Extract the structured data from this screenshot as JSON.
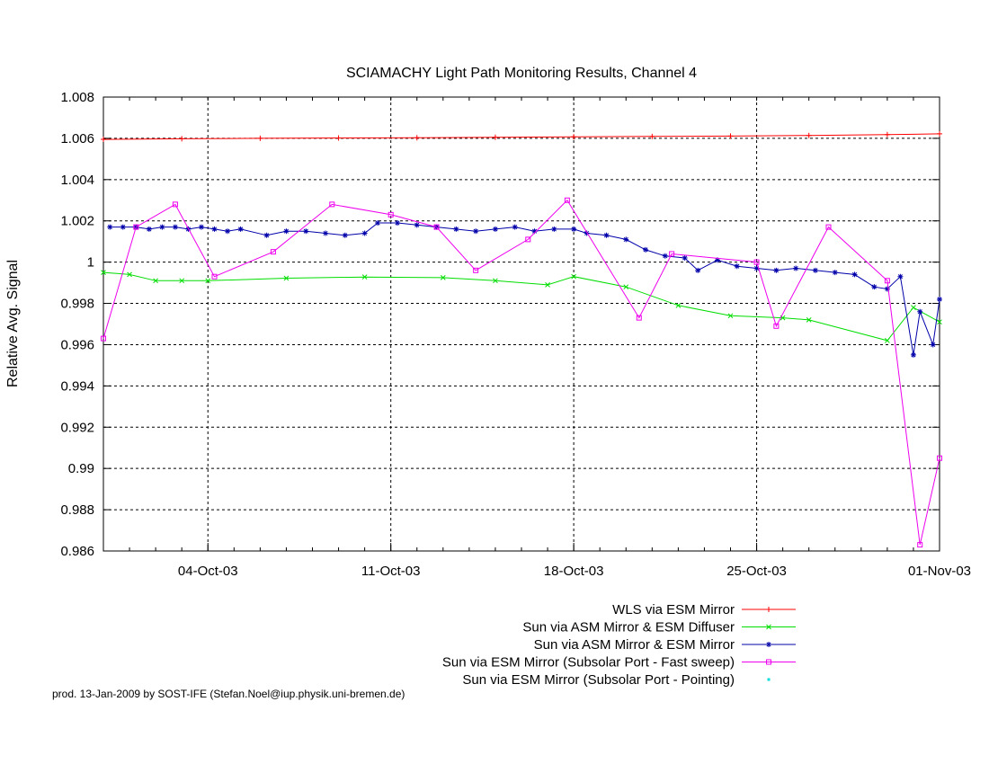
{
  "chart_data": {
    "type": "line",
    "title": "SCIAMACHY Light Path Monitoring Results, Channel 4",
    "xlabel": "",
    "ylabel": "Relative Avg. Signal",
    "x_range": [
      "2003-09-30",
      "2003-11-01"
    ],
    "ylim": [
      0.986,
      1.008
    ],
    "grid": true,
    "legend_position": "bottom",
    "x_ticks": [
      {
        "date": "2003-10-04",
        "label": "04-Oct-03"
      },
      {
        "date": "2003-10-11",
        "label": "11-Oct-03"
      },
      {
        "date": "2003-10-18",
        "label": "18-Oct-03"
      },
      {
        "date": "2003-10-25",
        "label": "25-Oct-03"
      },
      {
        "date": "2003-11-01",
        "label": "01-Nov-03"
      }
    ],
    "y_ticks": [
      {
        "value": 1.008,
        "label": "1.008"
      },
      {
        "value": 1.006,
        "label": "1.006"
      },
      {
        "value": 1.004,
        "label": "1.004"
      },
      {
        "value": 1.002,
        "label": "1.002"
      },
      {
        "value": 1.0,
        "label": "1"
      },
      {
        "value": 0.998,
        "label": "0.998"
      },
      {
        "value": 0.996,
        "label": "0.996"
      },
      {
        "value": 0.994,
        "label": "0.994"
      },
      {
        "value": 0.992,
        "label": "0.992"
      },
      {
        "value": 0.99,
        "label": "0.99"
      },
      {
        "value": 0.988,
        "label": "0.988"
      },
      {
        "value": 0.986,
        "label": "0.986"
      }
    ],
    "series": [
      {
        "name": "WLS via ESM Mirror",
        "color": "#ff0000",
        "marker": "plus",
        "x": [
          "2003-09-30T00:00",
          "2003-10-03T00:00",
          "2003-10-06T00:00",
          "2003-10-09T00:00",
          "2003-10-12T00:00",
          "2003-10-15T00:00",
          "2003-10-18T00:00",
          "2003-10-21T00:00",
          "2003-10-24T00:00",
          "2003-10-27T00:00",
          "2003-10-30T00:00",
          "2003-11-01T00:00"
        ],
        "y": [
          1.00595,
          1.00598,
          1.006,
          1.00602,
          1.00603,
          1.00605,
          1.00607,
          1.00609,
          1.00611,
          1.00614,
          1.00618,
          1.00622
        ]
      },
      {
        "name": "Sun via ASM Mirror & ESM Diffuser",
        "color": "#00dd00",
        "marker": "x",
        "x": [
          "2003-09-30T00:00",
          "2003-10-01T00:00",
          "2003-10-02T00:00",
          "2003-10-03T00:00",
          "2003-10-04T00:00",
          "2003-10-07T00:00",
          "2003-10-10T00:00",
          "2003-10-13T00:00",
          "2003-10-15T00:00",
          "2003-10-17T00:00",
          "2003-10-18T00:00",
          "2003-10-20T00:00",
          "2003-10-22T00:00",
          "2003-10-24T00:00",
          "2003-10-26T00:00",
          "2003-10-27T00:00",
          "2003-10-30T00:00",
          "2003-10-31T00:00",
          "2003-11-01T00:00"
        ],
        "y": [
          0.9995,
          0.9994,
          0.9991,
          0.9991,
          0.9991,
          0.99922,
          0.99928,
          0.99925,
          0.9991,
          0.9989,
          0.9993,
          0.9988,
          0.9979,
          0.9974,
          0.9973,
          0.9972,
          0.9962,
          0.9978,
          0.9971
        ]
      },
      {
        "name": "Sun via ASM Mirror & ESM Mirror",
        "color": "#0000aa",
        "marker": "star",
        "x": [
          "2003-09-30T06:00",
          "2003-09-30T18:00",
          "2003-10-01T06:00",
          "2003-10-01T18:00",
          "2003-10-02T06:00",
          "2003-10-02T18:00",
          "2003-10-03T06:00",
          "2003-10-03T18:00",
          "2003-10-04T06:00",
          "2003-10-04T18:00",
          "2003-10-05T06:00",
          "2003-10-06T06:00",
          "2003-10-07T00:00",
          "2003-10-07T18:00",
          "2003-10-08T12:00",
          "2003-10-09T06:00",
          "2003-10-10T00:00",
          "2003-10-10T12:00",
          "2003-10-11T06:00",
          "2003-10-12T00:00",
          "2003-10-12T18:00",
          "2003-10-13T12:00",
          "2003-10-14T06:00",
          "2003-10-15T00:00",
          "2003-10-15T18:00",
          "2003-10-16T12:00",
          "2003-10-17T06:00",
          "2003-10-18T00:00",
          "2003-10-18T12:00",
          "2003-10-19T06:00",
          "2003-10-20T00:00",
          "2003-10-20T18:00",
          "2003-10-21T12:00",
          "2003-10-22T06:00",
          "2003-10-22T18:00",
          "2003-10-23T12:00",
          "2003-10-24T06:00",
          "2003-10-25T00:00",
          "2003-10-25T18:00",
          "2003-10-26T12:00",
          "2003-10-27T06:00",
          "2003-10-28T00:00",
          "2003-10-28T18:00",
          "2003-10-29T12:00",
          "2003-10-30T00:00",
          "2003-10-30T12:00",
          "2003-10-31T00:00",
          "2003-10-31T06:00",
          "2003-10-31T18:00",
          "2003-11-01T00:00"
        ],
        "y": [
          1.0017,
          1.0017,
          1.0017,
          1.0016,
          1.0017,
          1.0017,
          1.0016,
          1.0017,
          1.0016,
          1.0015,
          1.0016,
          1.0013,
          1.0015,
          1.0015,
          1.0014,
          1.0013,
          1.0014,
          1.0019,
          1.0019,
          1.0018,
          1.0017,
          1.0016,
          1.0015,
          1.0016,
          1.0017,
          1.0015,
          1.0016,
          1.0016,
          1.0014,
          1.0013,
          1.0011,
          1.0006,
          1.0003,
          1.0002,
          0.9996,
          1.0001,
          0.9998,
          0.9997,
          0.9996,
          0.9997,
          0.9996,
          0.9995,
          0.9994,
          0.9988,
          0.9987,
          0.9993,
          0.9955,
          0.9976,
          0.996,
          0.9982
        ]
      },
      {
        "name": "Sun via ESM Mirror (Subsolar Port - Fast sweep)",
        "color": "#ee00ee",
        "marker": "square",
        "x": [
          "2003-09-30T00:00",
          "2003-10-01T06:00",
          "2003-10-02T18:00",
          "2003-10-04T06:00",
          "2003-10-06T12:00",
          "2003-10-08T18:00",
          "2003-10-11T00:00",
          "2003-10-12T18:00",
          "2003-10-14T06:00",
          "2003-10-16T06:00",
          "2003-10-17T18:00",
          "2003-10-20T12:00",
          "2003-10-21T18:00",
          "2003-10-25T00:00",
          "2003-10-25T18:00",
          "2003-10-27T18:00",
          "2003-10-30T00:00",
          "2003-10-31T06:00",
          "2003-11-01T00:00"
        ],
        "y": [
          0.9963,
          1.0017,
          1.0028,
          0.9993,
          1.0005,
          1.0028,
          1.0023,
          1.0017,
          0.9996,
          1.0011,
          1.003,
          0.9973,
          1.0004,
          1.0,
          0.9969,
          1.0017,
          0.9991,
          0.9863,
          0.9905
        ]
      },
      {
        "name": "Sun via ESM Mirror (Subsolar Port - Pointing)",
        "color": "#00dddd",
        "marker": "dot",
        "x": [],
        "y": []
      }
    ]
  },
  "footer": "prod. 13-Jan-2009 by SOST-IFE (Stefan.Noel@iup.physik.uni-bremen.de)"
}
